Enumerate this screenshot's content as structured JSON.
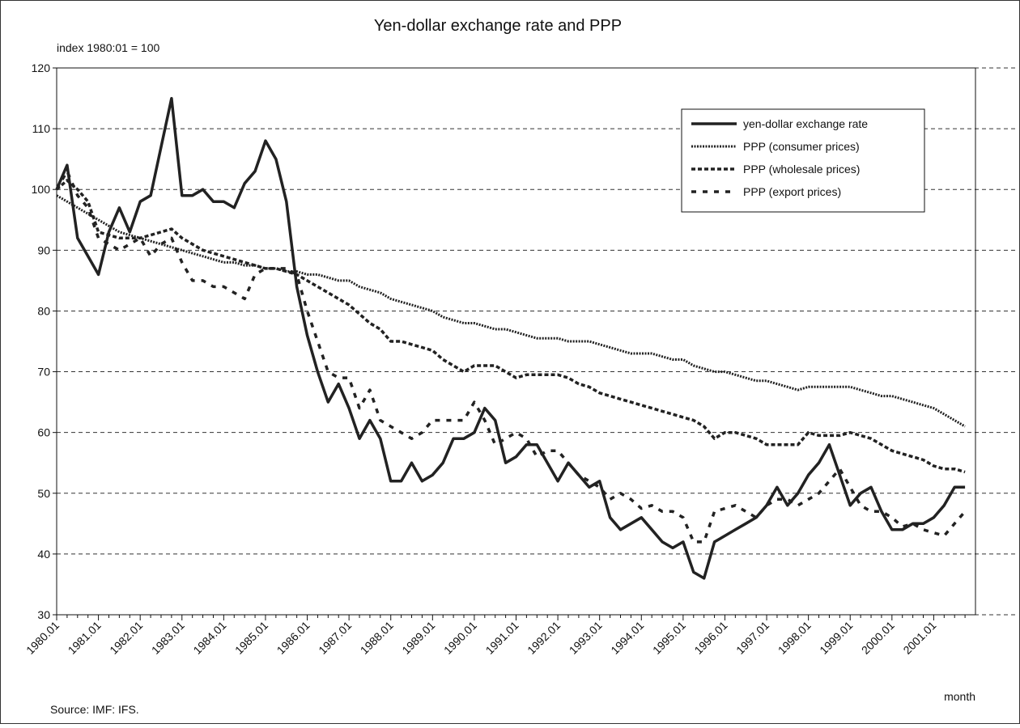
{
  "chart_data": {
    "type": "line",
    "title": "Yen-dollar exchange rate and PPP",
    "y_axis_label": "index 1980:01 = 100",
    "x_axis_label": "month",
    "source": "Source: IMF: IFS.",
    "categories": [
      "1980.01",
      null,
      null,
      null,
      "1981.01",
      null,
      null,
      null,
      "1982.01",
      null,
      null,
      null,
      "1983.01",
      null,
      null,
      null,
      "1984.01",
      null,
      null,
      null,
      "1985.01",
      null,
      null,
      null,
      "1986.01",
      null,
      null,
      null,
      "1987.01",
      null,
      null,
      null,
      "1988.01",
      null,
      null,
      null,
      "1989.01",
      null,
      null,
      null,
      "1990.01",
      null,
      null,
      null,
      "1991.01",
      null,
      null,
      null,
      "1992.01",
      null,
      null,
      null,
      "1993.01",
      null,
      null,
      null,
      "1994.01",
      null,
      null,
      null,
      "1995.01",
      null,
      null,
      null,
      "1996.01",
      null,
      null,
      null,
      "1997.01",
      null,
      null,
      null,
      "1998.01",
      null,
      null,
      null,
      "1999.01",
      null,
      null,
      null,
      "2000.01",
      null,
      null,
      null,
      "2001.01",
      null,
      null,
      null
    ],
    "ylim": [
      30,
      120
    ],
    "yticks": [
      30,
      40,
      50,
      60,
      70,
      80,
      90,
      100,
      110,
      120
    ],
    "grid": true,
    "legend": "upper right",
    "series": [
      {
        "name": "yen-dollar exchange rate",
        "color": "#222222",
        "dash": "solid",
        "values": [
          100,
          104,
          92,
          89,
          86,
          93,
          97,
          93,
          98,
          99,
          107,
          115,
          99,
          99,
          100,
          98,
          98,
          97,
          101,
          103,
          108,
          105,
          98,
          84,
          76,
          70,
          65,
          68,
          64,
          59,
          62,
          59,
          52,
          52,
          55,
          52,
          53,
          55,
          59,
          59,
          60,
          64,
          62,
          55,
          56,
          58,
          58,
          55,
          52,
          55,
          53,
          51,
          52,
          46,
          44,
          45,
          46,
          44,
          42,
          41,
          42,
          37,
          36,
          42,
          43,
          44,
          45,
          46,
          48,
          51,
          48,
          50,
          53,
          55,
          58,
          53,
          48,
          50,
          51,
          47,
          44,
          44,
          45,
          45,
          46,
          48,
          51,
          51
        ]
      },
      {
        "name": "PPP (consumer prices)",
        "color": "#222222",
        "dash": "dotted",
        "values": [
          99,
          98,
          97,
          96,
          95,
          94,
          93,
          92.5,
          92,
          91.5,
          91,
          90.5,
          90,
          89.5,
          89,
          88.5,
          88,
          88,
          87.5,
          87.5,
          87,
          87,
          86.5,
          86.5,
          86,
          86,
          85.5,
          85,
          85,
          84,
          83.5,
          83,
          82,
          81.5,
          81,
          80.5,
          80,
          79,
          78.5,
          78,
          78,
          77.5,
          77,
          77,
          76.5,
          76,
          75.5,
          75.5,
          75.5,
          75,
          75,
          75,
          74.5,
          74,
          73.5,
          73,
          73,
          73,
          72.5,
          72,
          72,
          71,
          70.5,
          70,
          70,
          69.5,
          69,
          68.5,
          68.5,
          68,
          67.5,
          67,
          67.5,
          67.5,
          67.5,
          67.5,
          67.5,
          67,
          66.5,
          66,
          66,
          65.5,
          65,
          64.5,
          64,
          63,
          62,
          61
        ]
      },
      {
        "name": "PPP (wholesale prices)",
        "color": "#222222",
        "dash": "dashed",
        "values": [
          100,
          101.5,
          100,
          98,
          93,
          92.5,
          92,
          92,
          92,
          92.5,
          93,
          93.5,
          92,
          91,
          90,
          89.5,
          89,
          88.5,
          88,
          87.5,
          87,
          87,
          86.5,
          86,
          85,
          84,
          83,
          82,
          81,
          79.5,
          78,
          77,
          75,
          75,
          74.5,
          74,
          73.5,
          72,
          71,
          70,
          71,
          71,
          71,
          70,
          69,
          69.5,
          69.5,
          69.5,
          69.5,
          69,
          68,
          67.5,
          66.5,
          66,
          65.5,
          65,
          64.5,
          64,
          63.5,
          63,
          62.5,
          62,
          61,
          59,
          60,
          60,
          59.5,
          59,
          58,
          58,
          58,
          58,
          60,
          59.5,
          59.5,
          59.5,
          60,
          59.5,
          59,
          58,
          57,
          56.5,
          56,
          55.5,
          54.5,
          54,
          54,
          53.5
        ]
      },
      {
        "name": "PPP (export prices)",
        "color": "#222222",
        "dash": "sparse",
        "values": [
          100,
          103,
          99,
          97,
          92,
          91,
          90,
          91,
          92,
          89,
          91,
          92,
          88,
          85,
          85,
          84,
          84,
          83,
          82,
          86,
          87,
          87,
          87,
          86,
          80,
          75,
          70,
          69,
          69,
          64,
          67,
          62,
          61,
          60,
          59,
          60,
          62,
          62,
          62,
          62,
          65,
          62,
          58,
          59,
          60,
          59,
          56,
          57,
          57,
          55,
          53,
          52,
          51,
          49,
          50,
          49,
          47.5,
          48,
          47,
          47,
          46,
          42,
          42,
          47,
          47.5,
          48,
          47,
          46,
          48,
          49,
          49,
          48,
          49,
          50,
          52,
          54,
          51,
          48,
          47,
          47,
          46,
          44.5,
          45,
          44,
          43.5,
          43,
          45,
          47
        ]
      }
    ]
  }
}
